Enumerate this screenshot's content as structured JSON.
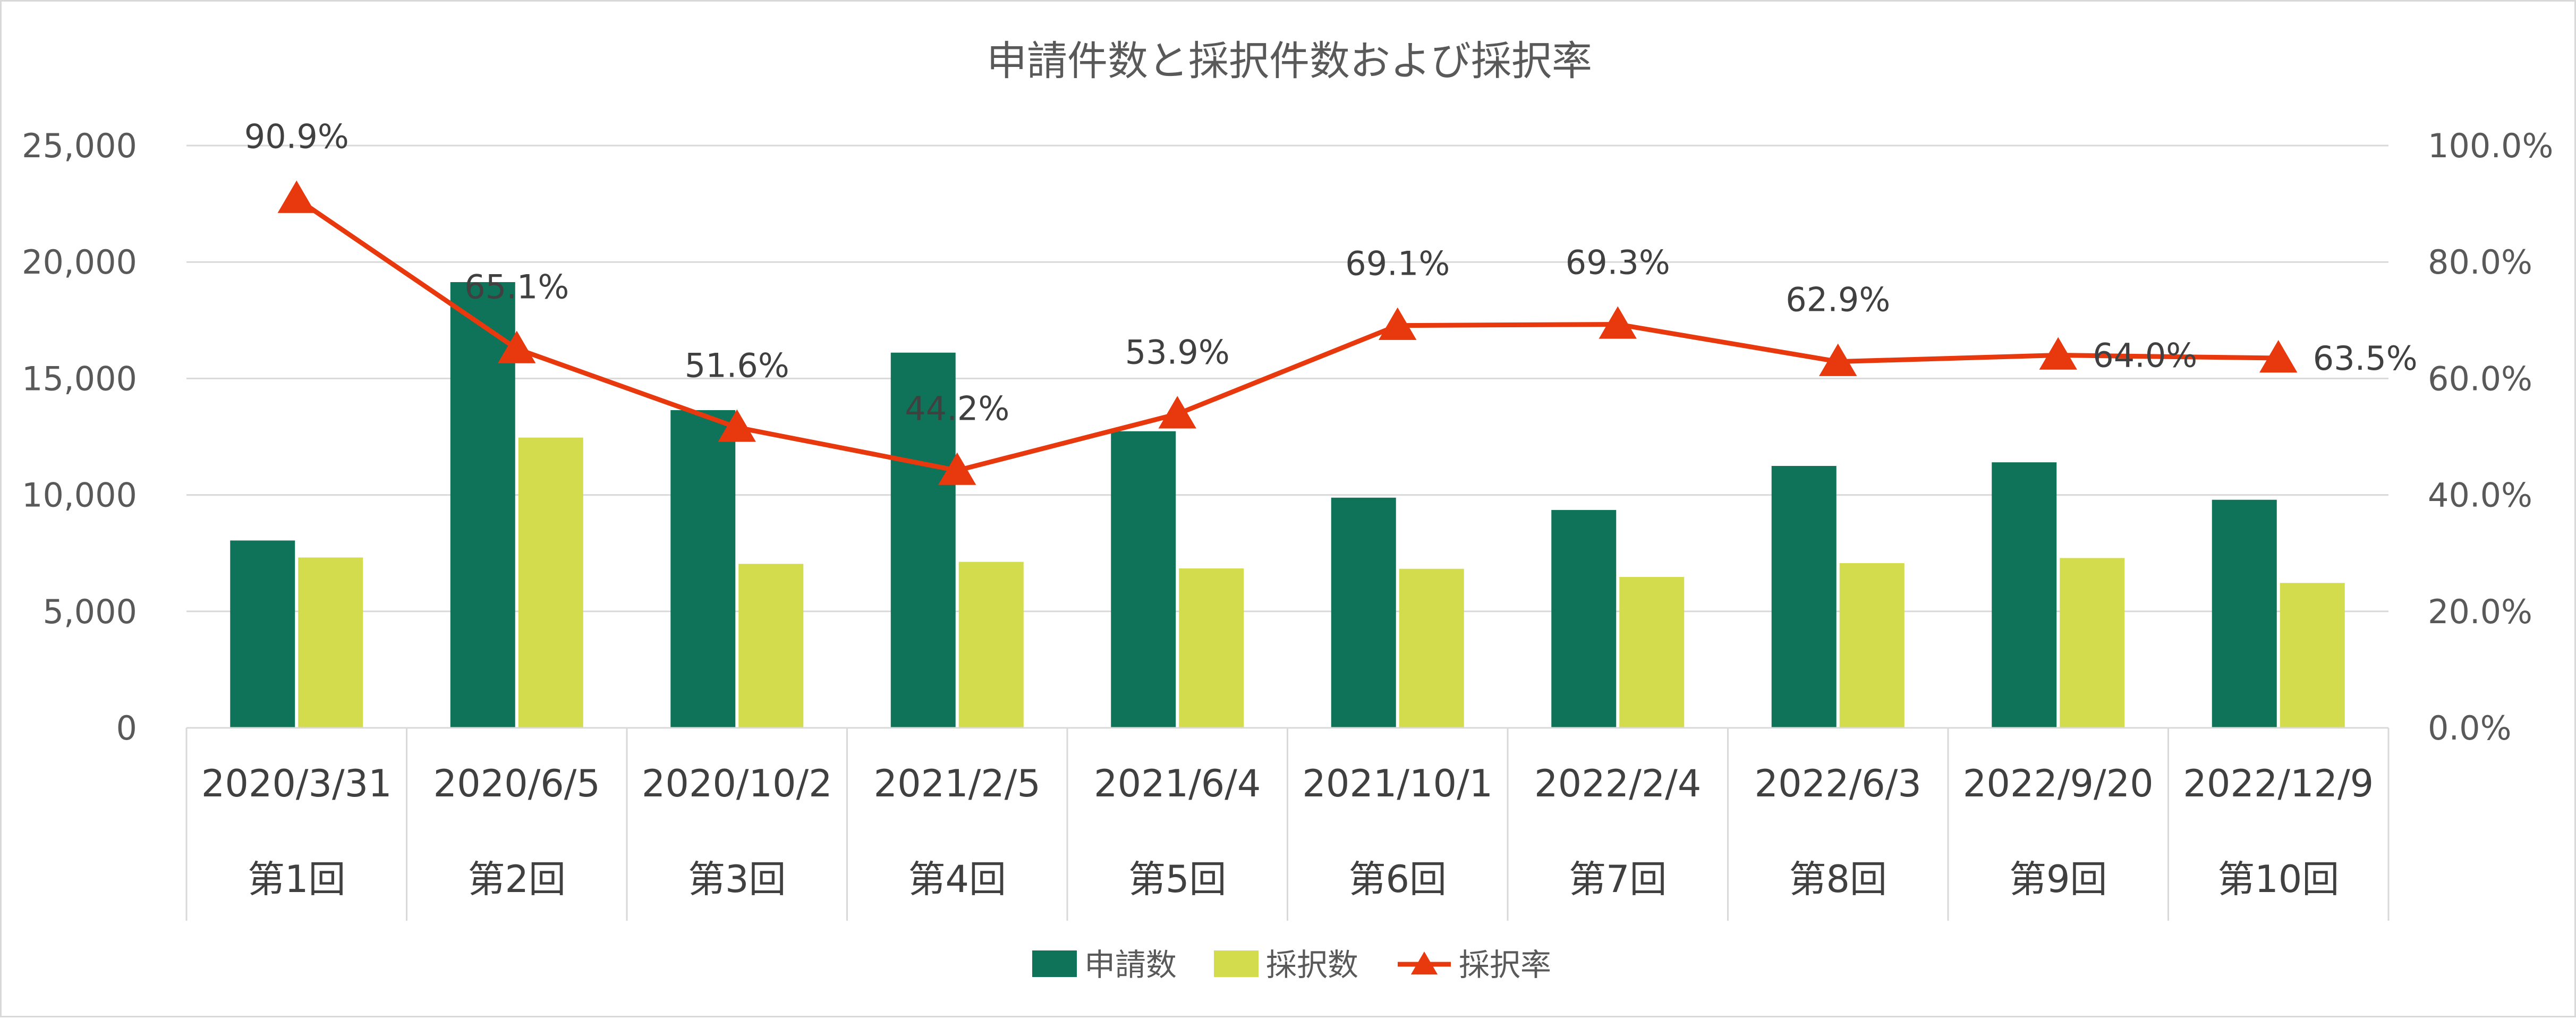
{
  "chart_data": {
    "type": "bar",
    "title": "申請件数と採択件数および採択率",
    "categories": [
      "2020/3/31",
      "2020/6/5",
      "2020/10/2",
      "2021/2/5",
      "2021/6/4",
      "2021/10/1",
      "2022/2/4",
      "2022/6/3",
      "2022/9/20",
      "2022/12/9"
    ],
    "rounds": [
      "第1回",
      "第2回",
      "第3回",
      "第4回",
      "第5回",
      "第6回",
      "第7回",
      "第8回",
      "第9回",
      "第10回"
    ],
    "series": [
      {
        "name": "申請数",
        "type": "bar",
        "axis": "left",
        "color": "#0e7358",
        "values": [
          8044,
          19138,
          13642,
          16110,
          12735,
          9883,
          9355,
          11246,
          11401,
          9793
        ]
      },
      {
        "name": "採択数",
        "type": "bar",
        "axis": "left",
        "color": "#d3dc4c",
        "values": [
          7314,
          12464,
          7041,
          7127,
          6847,
          6829,
          6480,
          7073,
          7292,
          6222
        ]
      },
      {
        "name": "採択率",
        "type": "line",
        "axis": "right",
        "color": "#e8380d",
        "values": [
          90.9,
          65.1,
          51.6,
          44.2,
          53.9,
          69.1,
          69.3,
          62.9,
          64.0,
          63.5
        ],
        "labels": [
          "90.9%",
          "65.1%",
          "51.6%",
          "44.2%",
          "53.9%",
          "69.1%",
          "69.3%",
          "62.9%",
          "64.0%",
          "63.5%"
        ]
      }
    ],
    "y_left": {
      "min": 0,
      "max": 25000,
      "ticks": [
        "0",
        "5,000",
        "10,000",
        "15,000",
        "20,000",
        "25,000"
      ]
    },
    "y_right": {
      "min": 0,
      "max": 100,
      "ticks": [
        "0.0%",
        "20.0%",
        "40.0%",
        "60.0%",
        "80.0%",
        "100.0%"
      ]
    },
    "grid": true,
    "legend_position": "bottom"
  }
}
